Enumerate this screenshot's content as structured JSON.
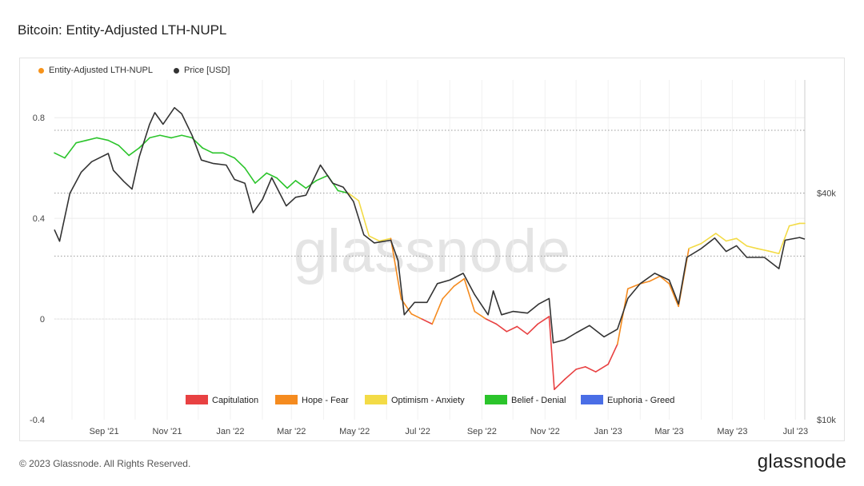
{
  "header": {
    "title": "Bitcoin: Entity-Adjusted LTH-NUPL"
  },
  "footer": {
    "copyright": "© 2023 Glassnode. All Rights Reserved.",
    "brand": "glassnode"
  },
  "watermark": "glassnode",
  "chart_data": {
    "type": "line",
    "title": "Bitcoin: Entity-Adjusted LTH-NUPL",
    "legend": {
      "placement": "top-left",
      "series": [
        {
          "name": "Entity-Adjusted LTH-NUPL",
          "color": "#f7931a"
        },
        {
          "name": "Price [USD]",
          "color": "#333333"
        }
      ]
    },
    "x_tick_labels": [
      "Sep '21",
      "Nov '21",
      "Jan '22",
      "Mar '22",
      "May '22",
      "Jul '22",
      "Sep '22",
      "Nov '22",
      "Jan '23",
      "Mar '23",
      "May '23",
      "Jul '23"
    ],
    "x_range": [
      "2021-07-15",
      "2023-07-10"
    ],
    "y_left": {
      "tick_labels": [
        "0.8",
        "0.4",
        "0",
        "-0.4"
      ],
      "range": [
        -0.4,
        0.95
      ]
    },
    "y_right": {
      "scale": "log",
      "tick_labels": [
        "$40k",
        "$10k"
      ],
      "range": [
        10000,
        80000
      ]
    },
    "zone_thresholds": [
      0.75,
      0.5,
      0.25,
      0
    ],
    "zones": [
      {
        "name": "Capitulation",
        "color": "#e84142",
        "range": [
          -1,
          0
        ]
      },
      {
        "name": "Hope - Fear",
        "color": "#f58b1f",
        "range": [
          0,
          0.25
        ]
      },
      {
        "name": "Optimism - Anxiety",
        "color": "#f3db46",
        "range": [
          0.25,
          0.5
        ]
      },
      {
        "name": "Belief - Denial",
        "color": "#2bc42b",
        "range": [
          0.5,
          0.75
        ]
      },
      {
        "name": "Euphoria - Greed",
        "color": "#4a6ee6",
        "range": [
          0.75,
          1
        ]
      }
    ],
    "series": [
      {
        "name": "Entity-Adjusted LTH-NUPL",
        "points": [
          [
            "2021-07-15",
            0.66
          ],
          [
            "2021-07-25",
            0.64
          ],
          [
            "2021-08-05",
            0.7
          ],
          [
            "2021-08-15",
            0.71
          ],
          [
            "2021-08-25",
            0.72
          ],
          [
            "2021-09-05",
            0.71
          ],
          [
            "2021-09-15",
            0.69
          ],
          [
            "2021-09-25",
            0.65
          ],
          [
            "2021-10-05",
            0.68
          ],
          [
            "2021-10-15",
            0.72
          ],
          [
            "2021-10-25",
            0.73
          ],
          [
            "2021-11-05",
            0.72
          ],
          [
            "2021-11-15",
            0.73
          ],
          [
            "2021-11-25",
            0.72
          ],
          [
            "2021-12-05",
            0.68
          ],
          [
            "2021-12-15",
            0.66
          ],
          [
            "2021-12-25",
            0.66
          ],
          [
            "2022-01-05",
            0.64
          ],
          [
            "2022-01-15",
            0.6
          ],
          [
            "2022-01-25",
            0.54
          ],
          [
            "2022-02-05",
            0.58
          ],
          [
            "2022-02-15",
            0.56
          ],
          [
            "2022-02-25",
            0.52
          ],
          [
            "2022-03-05",
            0.55
          ],
          [
            "2022-03-15",
            0.52
          ],
          [
            "2022-03-25",
            0.55
          ],
          [
            "2022-04-05",
            0.57
          ],
          [
            "2022-04-15",
            0.51
          ],
          [
            "2022-04-25",
            0.5
          ],
          [
            "2022-05-05",
            0.47
          ],
          [
            "2022-05-15",
            0.33
          ],
          [
            "2022-05-25",
            0.31
          ],
          [
            "2022-06-05",
            0.32
          ],
          [
            "2022-06-15",
            0.08
          ],
          [
            "2022-06-25",
            0.02
          ],
          [
            "2022-07-05",
            0.0
          ],
          [
            "2022-07-15",
            -0.02
          ],
          [
            "2022-07-25",
            0.08
          ],
          [
            "2022-08-05",
            0.13
          ],
          [
            "2022-08-15",
            0.16
          ],
          [
            "2022-08-25",
            0.03
          ],
          [
            "2022-09-05",
            0.0
          ],
          [
            "2022-09-15",
            -0.02
          ],
          [
            "2022-09-25",
            -0.05
          ],
          [
            "2022-10-05",
            -0.03
          ],
          [
            "2022-10-15",
            -0.06
          ],
          [
            "2022-10-25",
            -0.02
          ],
          [
            "2022-11-05",
            0.01
          ],
          [
            "2022-11-10",
            -0.28
          ],
          [
            "2022-11-20",
            -0.24
          ],
          [
            "2022-12-01",
            -0.2
          ],
          [
            "2022-12-10",
            -0.19
          ],
          [
            "2022-12-20",
            -0.21
          ],
          [
            "2023-01-01",
            -0.18
          ],
          [
            "2023-01-10",
            -0.1
          ],
          [
            "2023-01-20",
            0.12
          ],
          [
            "2023-02-01",
            0.14
          ],
          [
            "2023-02-10",
            0.15
          ],
          [
            "2023-02-20",
            0.17
          ],
          [
            "2023-03-01",
            0.14
          ],
          [
            "2023-03-10",
            0.05
          ],
          [
            "2023-03-20",
            0.28
          ],
          [
            "2023-04-01",
            0.3
          ],
          [
            "2023-04-15",
            0.34
          ],
          [
            "2023-04-25",
            0.31
          ],
          [
            "2023-05-05",
            0.32
          ],
          [
            "2023-05-15",
            0.29
          ],
          [
            "2023-05-25",
            0.28
          ],
          [
            "2023-06-05",
            0.27
          ],
          [
            "2023-06-15",
            0.26
          ],
          [
            "2023-06-25",
            0.37
          ],
          [
            "2023-07-05",
            0.38
          ],
          [
            "2023-07-10",
            0.38
          ]
        ]
      },
      {
        "name": "Price [USD]",
        "points": [
          [
            "2021-07-15",
            32000
          ],
          [
            "2021-07-20",
            29800
          ],
          [
            "2021-07-30",
            40000
          ],
          [
            "2021-08-10",
            45500
          ],
          [
            "2021-08-20",
            48500
          ],
          [
            "2021-09-05",
            51000
          ],
          [
            "2021-09-10",
            46000
          ],
          [
            "2021-09-20",
            43000
          ],
          [
            "2021-09-28",
            41000
          ],
          [
            "2021-10-05",
            50000
          ],
          [
            "2021-10-15",
            61000
          ],
          [
            "2021-10-20",
            65500
          ],
          [
            "2021-10-28",
            61000
          ],
          [
            "2021-11-08",
            67500
          ],
          [
            "2021-11-15",
            65000
          ],
          [
            "2021-11-25",
            57000
          ],
          [
            "2021-12-04",
            49000
          ],
          [
            "2021-12-15",
            48000
          ],
          [
            "2021-12-28",
            47500
          ],
          [
            "2022-01-05",
            43500
          ],
          [
            "2022-01-15",
            42500
          ],
          [
            "2022-01-23",
            35500
          ],
          [
            "2022-02-01",
            38500
          ],
          [
            "2022-02-10",
            44000
          ],
          [
            "2022-02-24",
            37000
          ],
          [
            "2022-03-05",
            39000
          ],
          [
            "2022-03-15",
            39500
          ],
          [
            "2022-03-29",
            47500
          ],
          [
            "2022-04-10",
            42500
          ],
          [
            "2022-04-20",
            41500
          ],
          [
            "2022-04-30",
            38000
          ],
          [
            "2022-05-10",
            31000
          ],
          [
            "2022-05-20",
            29500
          ],
          [
            "2022-06-05",
            30000
          ],
          [
            "2022-06-12",
            26500
          ],
          [
            "2022-06-18",
            19000
          ],
          [
            "2022-06-28",
            20500
          ],
          [
            "2022-07-10",
            20500
          ],
          [
            "2022-07-20",
            23000
          ],
          [
            "2022-08-01",
            23500
          ],
          [
            "2022-08-14",
            24500
          ],
          [
            "2022-08-25",
            21500
          ],
          [
            "2022-09-07",
            19000
          ],
          [
            "2022-09-12",
            22000
          ],
          [
            "2022-09-20",
            19000
          ],
          [
            "2022-10-01",
            19400
          ],
          [
            "2022-10-15",
            19200
          ],
          [
            "2022-10-26",
            20300
          ],
          [
            "2022-11-05",
            21000
          ],
          [
            "2022-11-09",
            16000
          ],
          [
            "2022-11-20",
            16300
          ],
          [
            "2022-12-01",
            17000
          ],
          [
            "2022-12-14",
            17800
          ],
          [
            "2022-12-28",
            16600
          ],
          [
            "2023-01-10",
            17400
          ],
          [
            "2023-01-20",
            21000
          ],
          [
            "2023-02-01",
            23000
          ],
          [
            "2023-02-15",
            24500
          ],
          [
            "2023-03-01",
            23500
          ],
          [
            "2023-03-10",
            20300
          ],
          [
            "2023-03-18",
            27000
          ],
          [
            "2023-04-01",
            28500
          ],
          [
            "2023-04-14",
            30400
          ],
          [
            "2023-04-25",
            28000
          ],
          [
            "2023-05-05",
            29000
          ],
          [
            "2023-05-15",
            27000
          ],
          [
            "2023-06-01",
            27000
          ],
          [
            "2023-06-15",
            25200
          ],
          [
            "2023-06-21",
            30000
          ],
          [
            "2023-07-05",
            30500
          ],
          [
            "2023-07-10",
            30200
          ]
        ]
      }
    ]
  }
}
